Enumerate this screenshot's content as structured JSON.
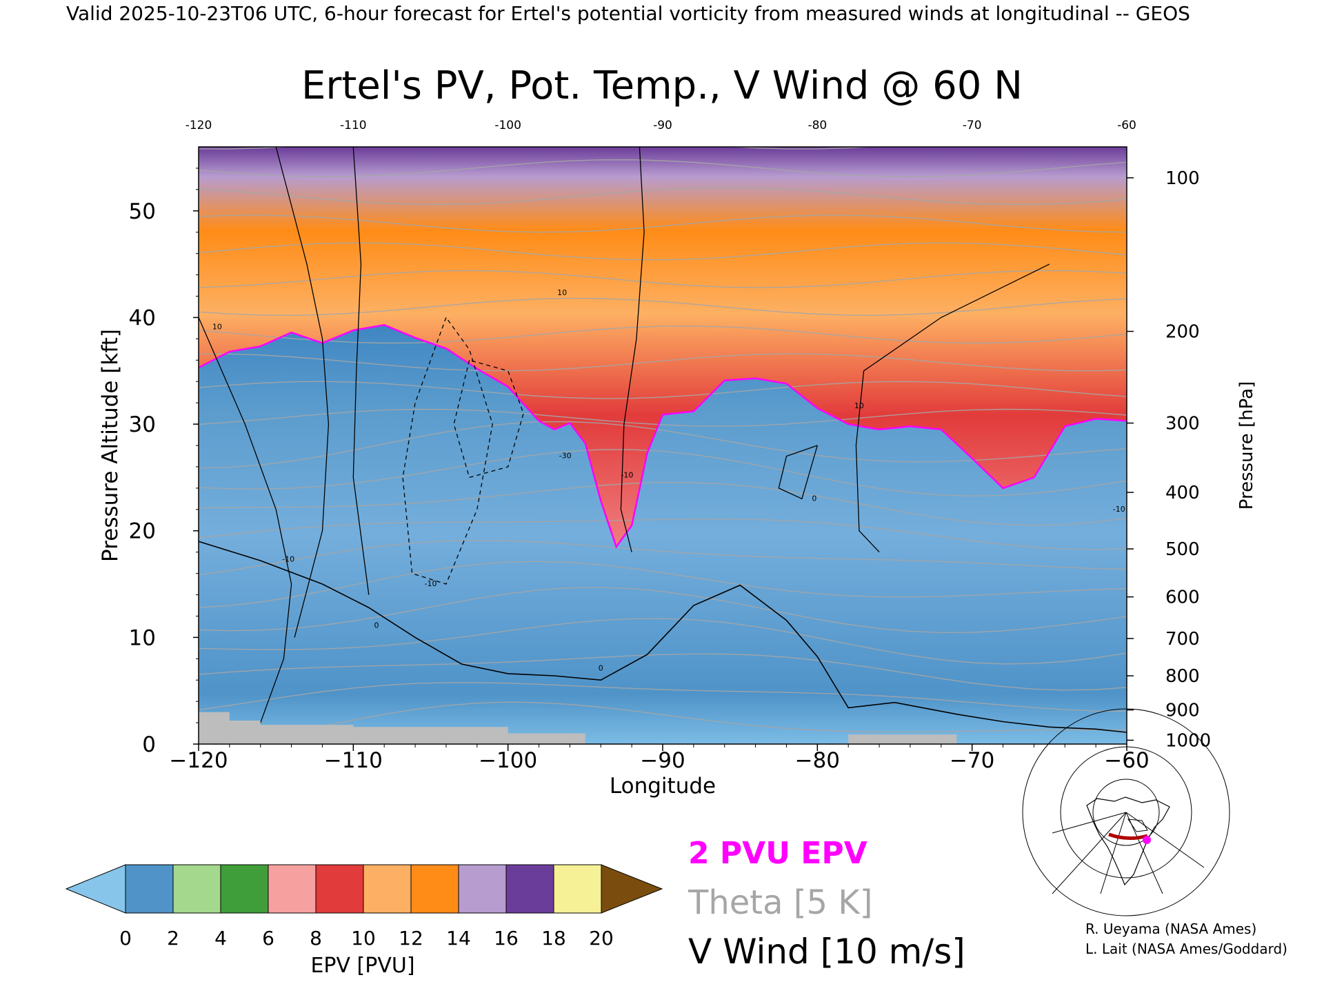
{
  "header": {
    "valid_line": "Valid 2025-10-23T06 UTC, 6-hour forecast for Ertel's potential vorticity from measured winds at longitudinal -- GEOS"
  },
  "chart_data": {
    "type": "heatmap",
    "title": "Ertel's PV, Pot. Temp., V Wind @ 60 N",
    "xlabel": "Longitude",
    "ylabel_left": "Pressure Altitude [kft]",
    "ylabel_right": "Pressure [hPa]",
    "xlim": [
      -120,
      -60
    ],
    "ylim": [
      0,
      56
    ],
    "x_ticks": [
      -120,
      -110,
      -100,
      -90,
      -80,
      -70,
      -60
    ],
    "x_ticks_top": [
      -120,
      -110,
      -100,
      -90,
      -80,
      -70,
      -60
    ],
    "y_ticks_left": [
      0,
      10,
      20,
      30,
      40,
      50
    ],
    "pressure_ticks": [
      {
        "hPa": 1000,
        "kft": 0.36
      },
      {
        "hPa": 900,
        "kft": 3.2
      },
      {
        "hPa": 800,
        "kft": 6.4
      },
      {
        "hPa": 700,
        "kft": 9.9
      },
      {
        "hPa": 600,
        "kft": 13.8
      },
      {
        "hPa": 500,
        "kft": 18.3
      },
      {
        "hPa": 400,
        "kft": 23.6
      },
      {
        "hPa": 300,
        "kft": 30.1
      },
      {
        "hPa": 200,
        "kft": 38.7
      },
      {
        "hPa": 100,
        "kft": 53.1
      }
    ],
    "pv2_tropopause": {
      "longitude": [
        -120,
        -118,
        -116,
        -114,
        -112,
        -110,
        -108,
        -106,
        -104,
        -102,
        -100,
        -98,
        -97,
        -96,
        -95,
        -94,
        -93,
        -92,
        -91,
        -90,
        -88,
        -86,
        -84,
        -82,
        -80,
        -78,
        -76,
        -74,
        -72,
        -70,
        -68,
        -66,
        -64,
        -62,
        -60
      ],
      "kft": [
        35.3,
        36.8,
        37.3,
        38.6,
        37.6,
        38.8,
        39.3,
        38.1,
        37.1,
        35.2,
        33.5,
        30.3,
        29.5,
        30.1,
        28.2,
        22.8,
        18.5,
        20.5,
        27.3,
        30.9,
        31.2,
        34.1,
        34.3,
        33.8,
        31.5,
        30.0,
        29.5,
        29.8,
        29.5,
        26.8,
        24.0,
        25.0,
        29.8,
        30.5,
        30.3
      ]
    },
    "v_wind_zero_line": {
      "longitude": [
        -120,
        -116,
        -112,
        -109,
        -106,
        -103,
        -100,
        -97,
        -94,
        -91,
        -88,
        -85,
        -82,
        -80,
        -78,
        -75,
        -71,
        -68,
        -65,
        -62,
        -60
      ],
      "kft": [
        19.0,
        17.2,
        15.0,
        12.8,
        10.0,
        7.5,
        6.6,
        6.4,
        6.0,
        8.4,
        13.0,
        14.9,
        11.6,
        8.2,
        3.4,
        3.9,
        2.8,
        2.1,
        1.6,
        1.4,
        1.1
      ]
    },
    "color_scale": {
      "label": "EPV [PVU]",
      "ticks": [
        0,
        2,
        4,
        6,
        8,
        10,
        12,
        14,
        16,
        18,
        20
      ],
      "colors": [
        "#87c5ea",
        "#4f93c8",
        "#a4d88c",
        "#3f9e3a",
        "#f6a0a0",
        "#e23b3b",
        "#fdb063",
        "#ff8c17",
        "#b79ccf",
        "#6b3d9a",
        "#f6f096",
        "#7a4d0e"
      ]
    },
    "legend": [
      {
        "label": "2 PVU EPV",
        "color": "#ff00ff"
      },
      {
        "label": "Theta [5 K]",
        "color": "#a6a6a6"
      },
      {
        "label": "V Wind [10 m/s]",
        "color": "#000000"
      }
    ],
    "contour_labels": [
      {
        "text": "10",
        "lon": -118.8,
        "kft": 38.9
      },
      {
        "text": "10",
        "lon": -96.5,
        "kft": 42.1
      },
      {
        "text": "-10",
        "lon": -114.2,
        "kft": 17.1
      },
      {
        "text": "-10",
        "lon": -105.0,
        "kft": 14.8
      },
      {
        "text": "0",
        "lon": -108.5,
        "kft": 10.9
      },
      {
        "text": "0",
        "lon": -94.0,
        "kft": 6.9
      },
      {
        "text": "0",
        "lon": -80.2,
        "kft": 22.8
      },
      {
        "text": "-30",
        "lon": -96.3,
        "kft": 26.8
      },
      {
        "text": "-10",
        "lon": -92.3,
        "kft": 25.0
      },
      {
        "text": "10",
        "lon": -77.3,
        "kft": 31.5
      },
      {
        "text": "-10",
        "lon": -60.5,
        "kft": 21.8
      }
    ],
    "grid": false
  },
  "credits": [
    "R. Ueyama (NASA Ames)",
    "L. Lait (NASA Ames/Goddard)"
  ],
  "colors": {
    "troposphere": "#4f93c8",
    "terrain": "#bdbdbd",
    "pv2": "#ff00ff",
    "theta": "#a6a6a6"
  }
}
